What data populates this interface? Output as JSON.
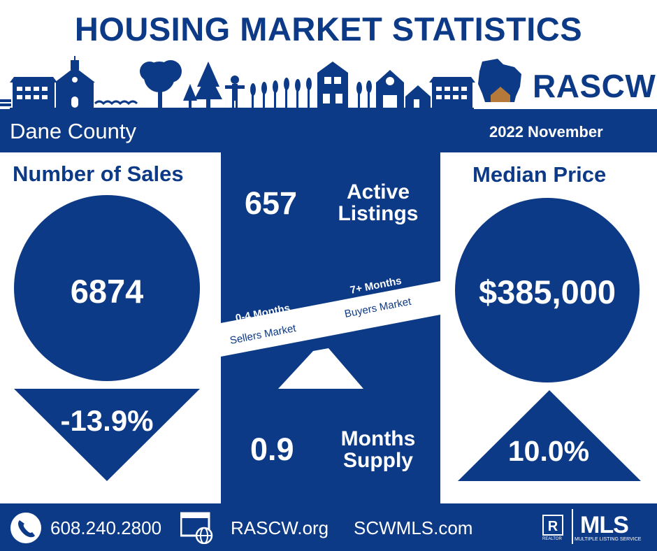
{
  "header": {
    "title": "HOUSING MARKET STATISTICS",
    "brand": "RASCW"
  },
  "banner": {
    "county": "Dane County",
    "period": "2022 November"
  },
  "sales": {
    "label": "Number of Sales",
    "value": "6874",
    "change": "-13.9%",
    "direction": "down"
  },
  "price": {
    "label": "Median Price",
    "value": "$385,000",
    "change": "10.0%",
    "direction": "up"
  },
  "listings": {
    "value": "657",
    "label_line1": "Active",
    "label_line2": "Listings"
  },
  "supply": {
    "value": "0.9",
    "label_line1": "Months",
    "label_line2": "Supply"
  },
  "scale": {
    "left_top": "0-4 Months",
    "left_bottom": "Sellers Market",
    "right_top": "7+ Months",
    "right_bottom": "Buyers Market"
  },
  "footer": {
    "phone": "608.240.2800",
    "site1": "RASCW.org",
    "site2": "SCWMLS.com",
    "mls": "MLS",
    "mls_sub": "MULTIPLE LISTING SERVICE",
    "realtor_sub": "REALTOR"
  },
  "icons": [
    "phone-icon",
    "web-icon",
    "realtor-logo-icon",
    "mls-logo",
    "wisconsin-map-icon",
    "skyline-illustration"
  ],
  "colors": {
    "primary": "#0d3a86",
    "accent": "#b5793a",
    "background": "#ffffff"
  }
}
